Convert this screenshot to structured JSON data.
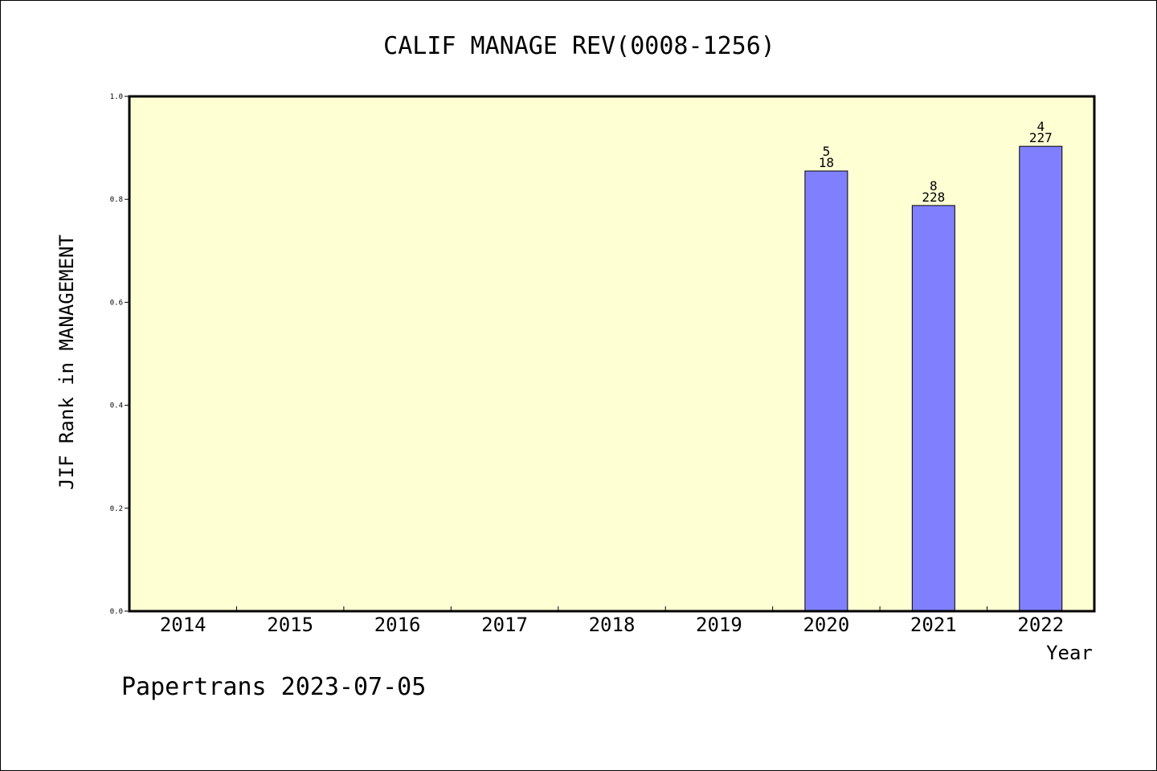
{
  "chart_data": {
    "type": "bar",
    "title": "CALIF MANAGE REV(0008-1256)",
    "xlabel": "Year",
    "ylabel": "JIF Rank in MANAGEMENT",
    "ylim": [
      0,
      1.0
    ],
    "yticks": [
      "0.0",
      "0.2",
      "0.4",
      "0.6",
      "0.8",
      "1.0"
    ],
    "categories": [
      "2014",
      "2015",
      "2016",
      "2017",
      "2018",
      "2019",
      "2020",
      "2021",
      "2022"
    ],
    "values": [
      null,
      null,
      null,
      null,
      null,
      null,
      0.855,
      0.788,
      0.903
    ],
    "bar_labels": [
      null,
      null,
      null,
      null,
      null,
      null,
      {
        "top": "5",
        "bottom": "18"
      },
      {
        "top": "8",
        "bottom": "228"
      },
      {
        "top": "4",
        "bottom": "227"
      }
    ],
    "footer": "Papertrans 2023-07-05",
    "colors": {
      "plot_bg": "#ffffd4",
      "bar": "#8080ff"
    }
  }
}
